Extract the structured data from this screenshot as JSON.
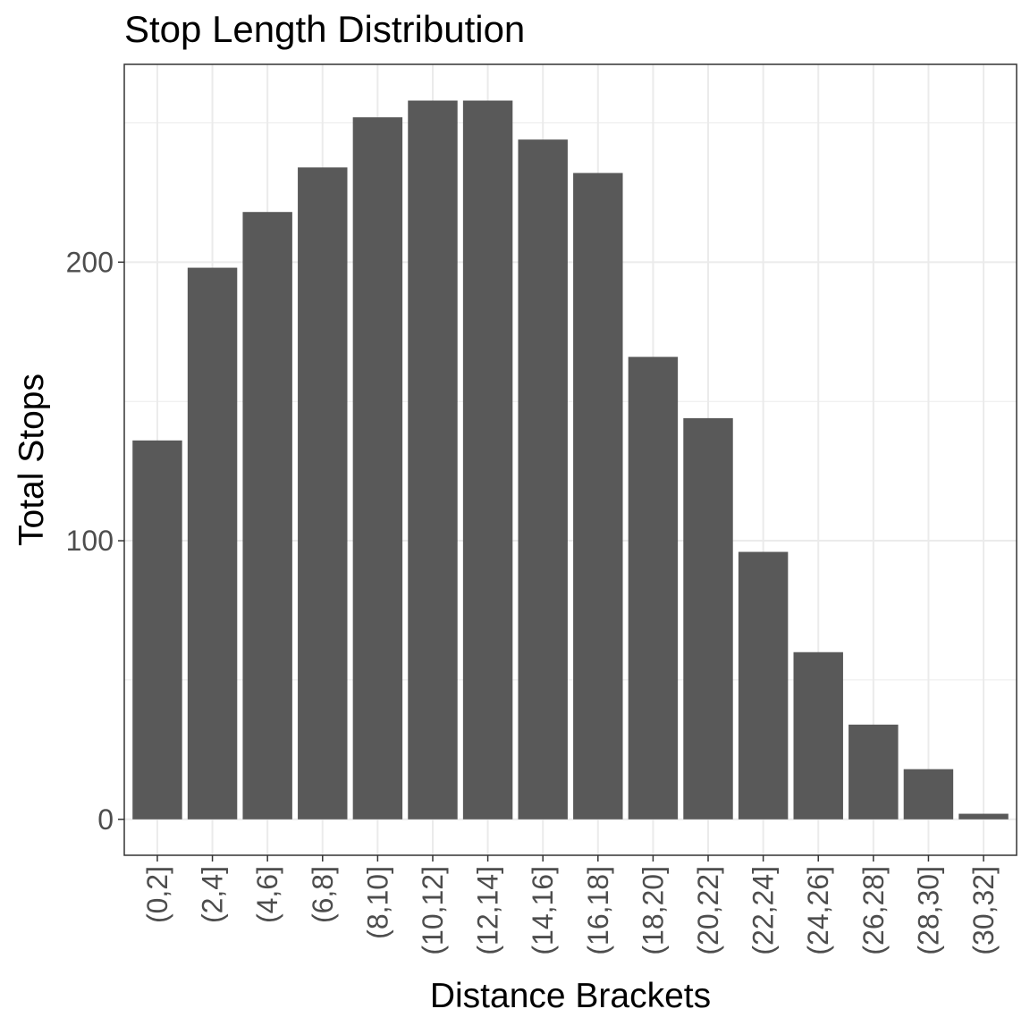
{
  "chart_data": {
    "type": "bar",
    "title": "Stop Length Distribution",
    "xlabel": "Distance Brackets",
    "ylabel": "Total Stops",
    "categories": [
      "(0,2]",
      "(2,4]",
      "(4,6]",
      "(6,8]",
      "(8,10]",
      "(10,12]",
      "(12,14]",
      "(14,16]",
      "(16,18]",
      "(18,20]",
      "(20,22]",
      "(22,24]",
      "(24,26]",
      "(26,28]",
      "(28,30]",
      "(30,32]"
    ],
    "values": [
      136,
      198,
      218,
      234,
      252,
      258,
      258,
      244,
      232,
      166,
      144,
      96,
      60,
      34,
      18,
      2
    ],
    "yticks": [
      0,
      100,
      200
    ],
    "ytick_labels": [
      "0",
      "100",
      "200"
    ],
    "ylim": [
      -12.9,
      271.0
    ],
    "grid": true,
    "bar_color": "#595959",
    "grid_color": "#ebebeb",
    "panel_border_color": "#333333"
  }
}
